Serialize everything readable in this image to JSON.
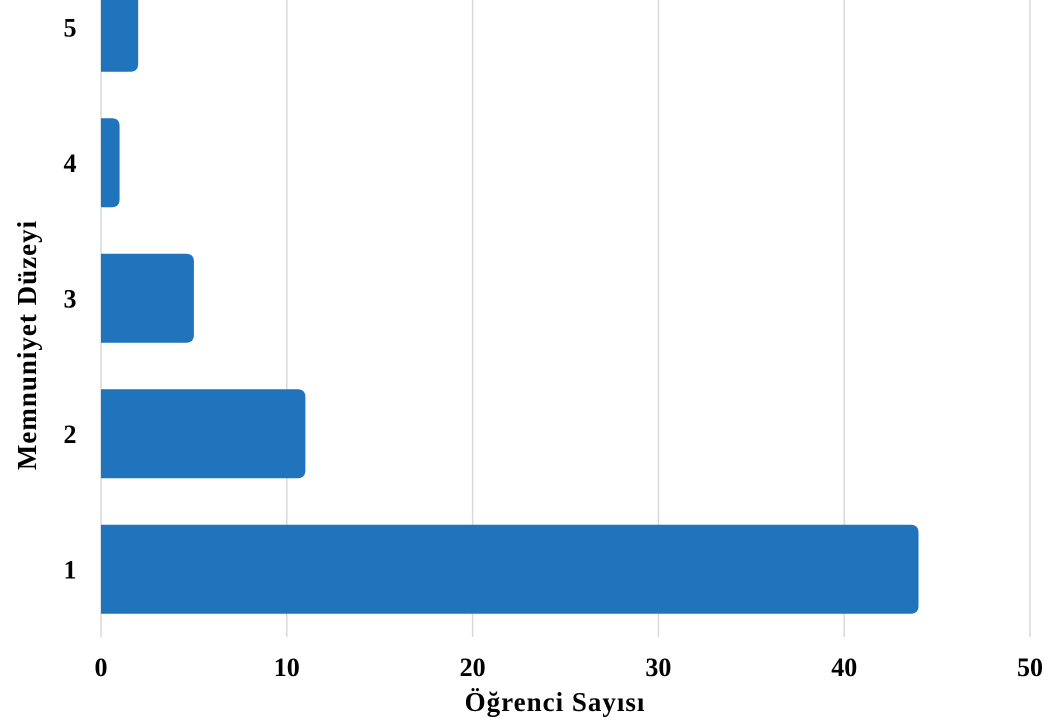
{
  "chart_data": {
    "type": "bar",
    "orientation": "horizontal",
    "categories": [
      "1",
      "2",
      "3",
      "4",
      "5"
    ],
    "values": [
      44,
      11,
      5,
      1,
      2
    ],
    "xlabel": "Öğrenci Sayısı",
    "ylabel": "Memnuniyet Düzeyi",
    "xlim": [
      0,
      50
    ],
    "xticks": [
      "0",
      "10",
      "20",
      "30",
      "40",
      "50"
    ],
    "grid": "vertical",
    "bar_color": "#1f74bb"
  }
}
